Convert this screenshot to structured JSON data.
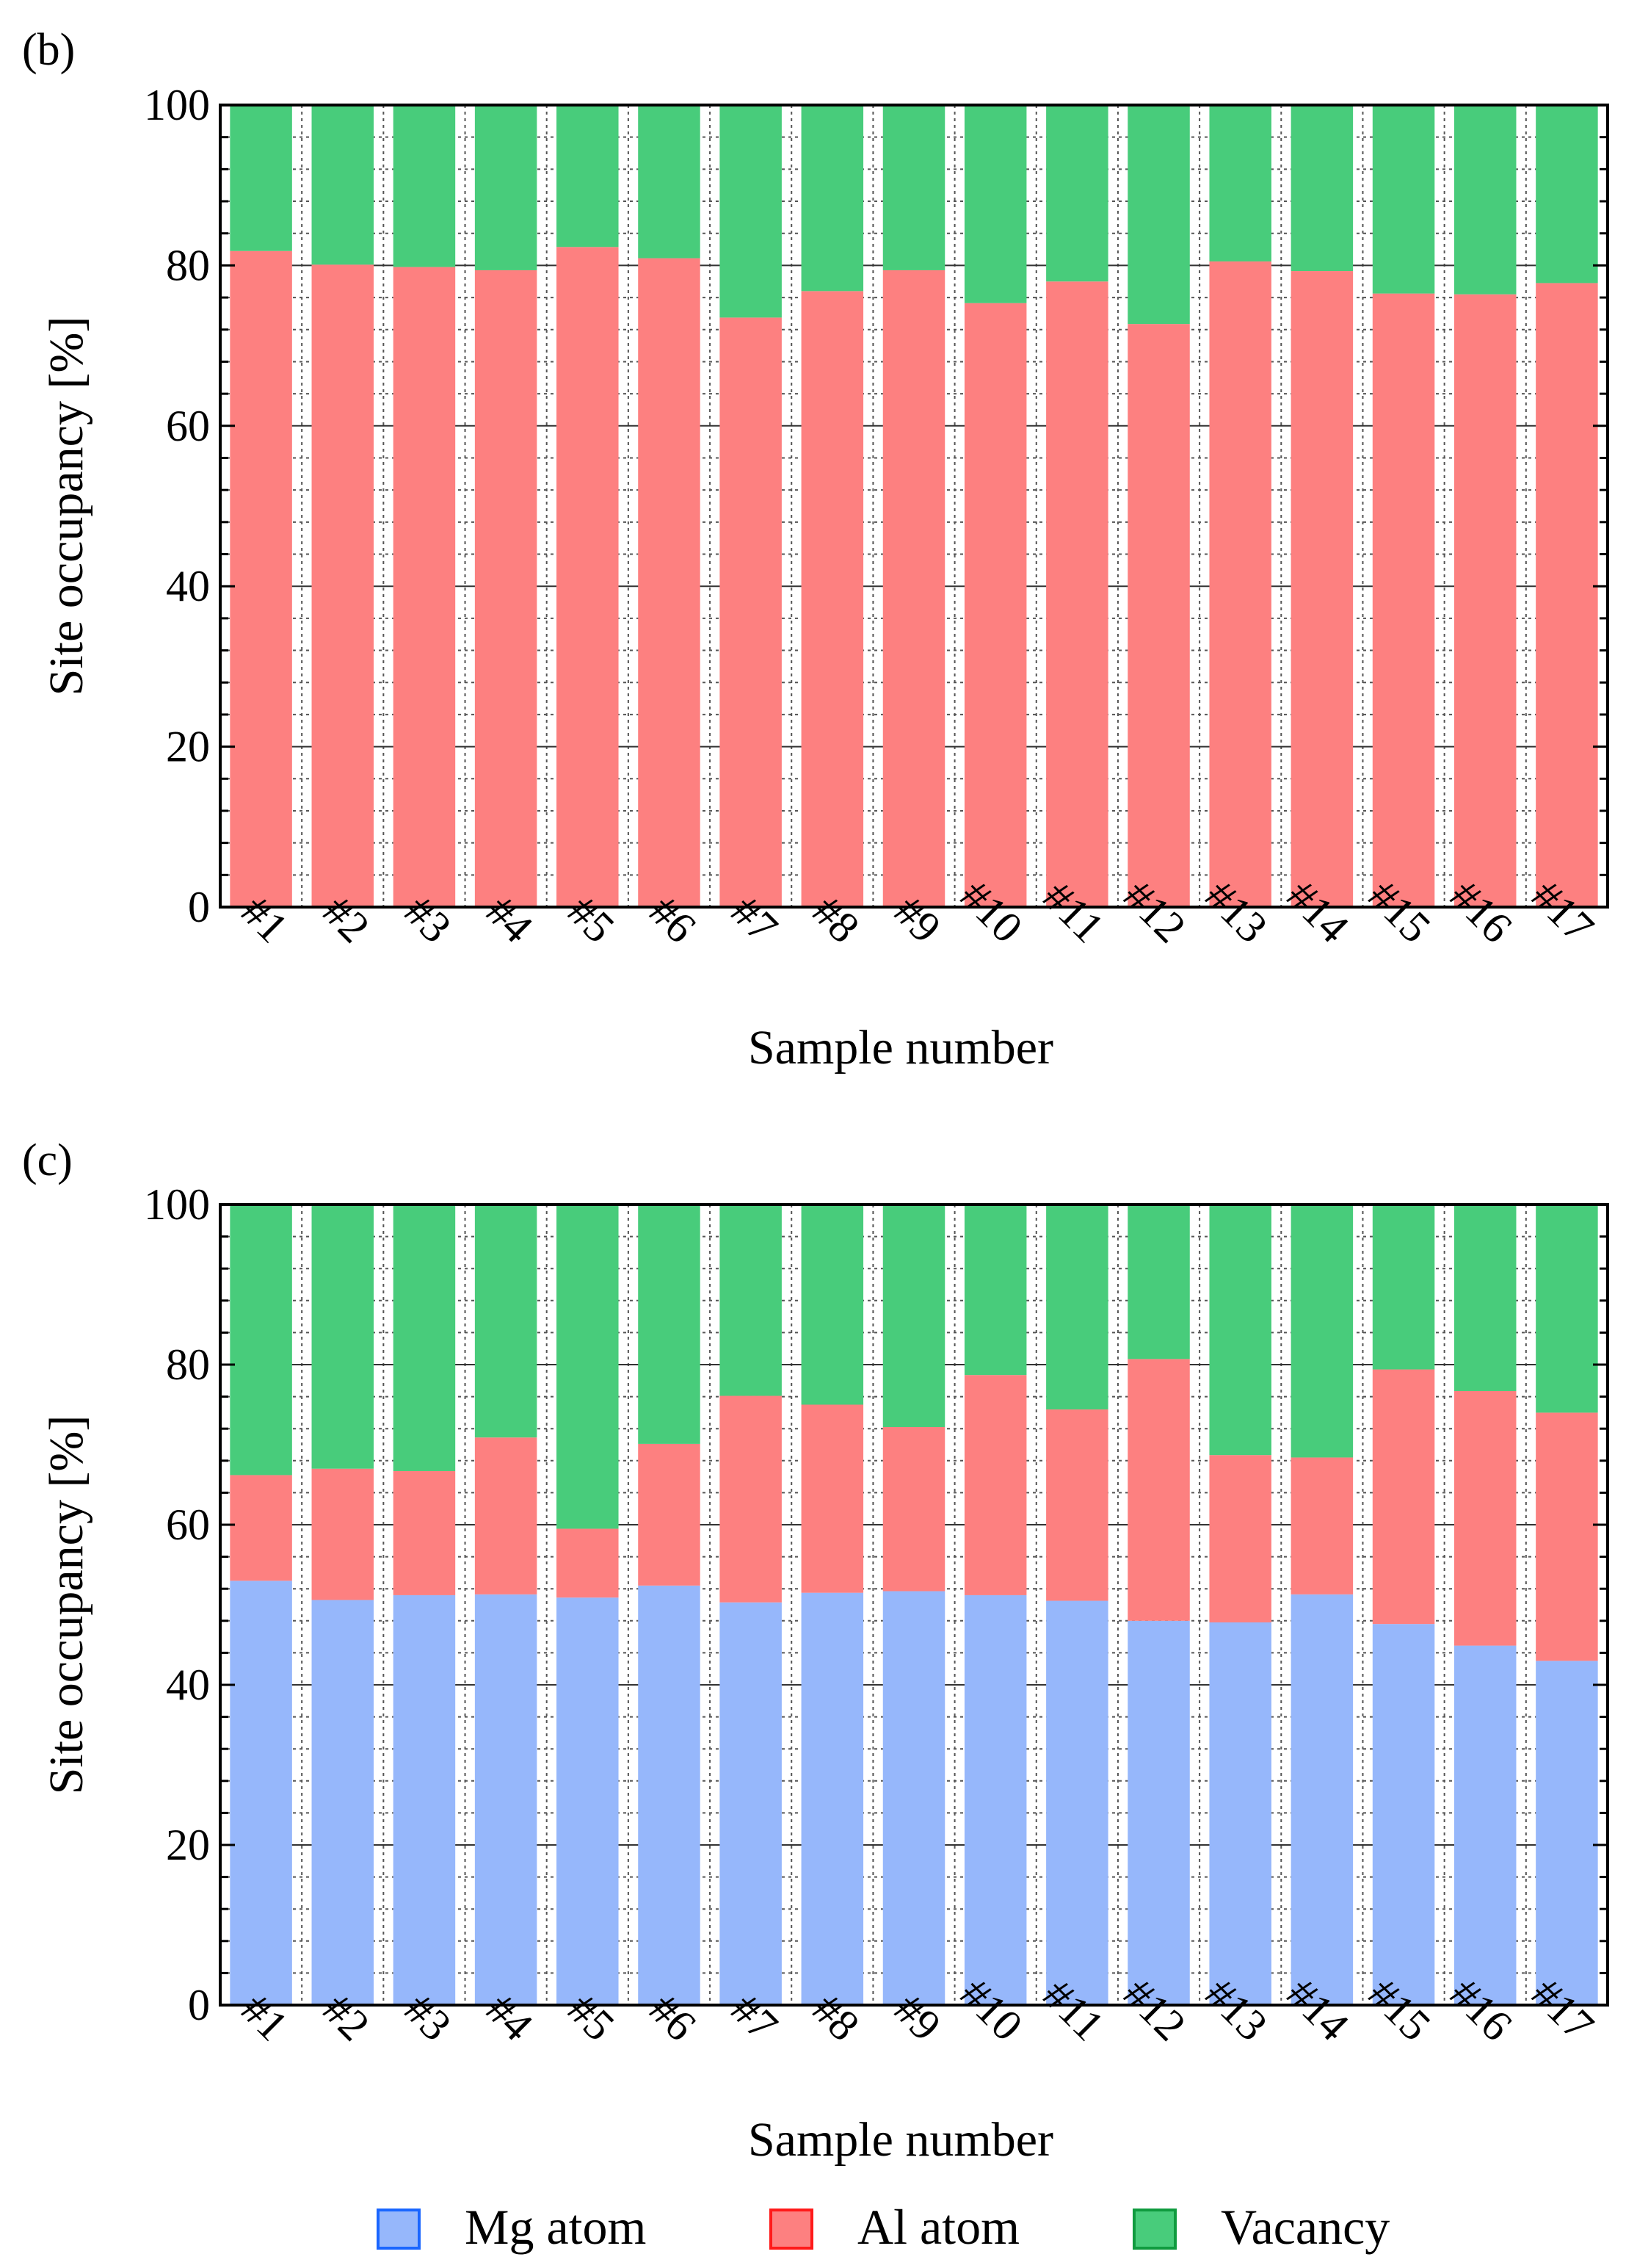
{
  "colors": {
    "mg": "#96b7fb",
    "al": "#fd8080",
    "vacancy": "#48cc7b",
    "mg_border": "#1a66ff",
    "al_border": "#ff1a1a",
    "vacancy_border": "#109b3f",
    "axis": "#000000"
  },
  "legend": {
    "items": [
      {
        "key": "mg",
        "label": "Mg atom"
      },
      {
        "key": "al",
        "label": "Al atom"
      },
      {
        "key": "vacancy",
        "label": "Vacancy"
      }
    ]
  },
  "chart_data": [
    {
      "panel_label": "(b)",
      "type": "bar",
      "stacked": true,
      "categories": [
        "#1",
        "#2",
        "#3",
        "#4",
        "#5",
        "#6",
        "#7",
        "#8",
        "#9",
        "#10",
        "#11",
        "#12",
        "#13",
        "#14",
        "#15",
        "#16",
        "#17"
      ],
      "series": [
        {
          "name": "Al atom",
          "key": "al",
          "values": [
            81.8,
            80.1,
            79.8,
            79.4,
            82.3,
            80.9,
            73.5,
            76.8,
            79.4,
            75.3,
            78.0,
            72.7,
            80.5,
            79.3,
            76.5,
            76.4,
            77.8
          ]
        },
        {
          "name": "Vacancy",
          "key": "vacancy",
          "values": [
            18.2,
            19.9,
            20.2,
            20.6,
            17.7,
            19.1,
            26.5,
            23.2,
            20.6,
            24.7,
            22.0,
            27.3,
            19.5,
            20.7,
            23.5,
            23.6,
            22.2
          ]
        }
      ],
      "title": "",
      "xlabel": "Sample number",
      "ylabel": "Site occupancy [%]",
      "ylim": [
        0,
        100
      ],
      "yticks": [
        "0",
        "20",
        "40",
        "60",
        "80",
        "100"
      ],
      "grid": true
    },
    {
      "panel_label": "(c)",
      "type": "bar",
      "stacked": true,
      "categories": [
        "#1",
        "#2",
        "#3",
        "#4",
        "#5",
        "#6",
        "#7",
        "#8",
        "#9",
        "#10",
        "#11",
        "#12",
        "#13",
        "#14",
        "#15",
        "#16",
        "#17"
      ],
      "series": [
        {
          "name": "Mg atom",
          "key": "mg",
          "values": [
            53.0,
            50.6,
            51.2,
            51.3,
            50.9,
            52.4,
            50.3,
            51.5,
            51.7,
            51.2,
            50.5,
            48.0,
            47.8,
            51.3,
            47.6,
            44.9,
            43.0
          ]
        },
        {
          "name": "Al atom",
          "key": "al",
          "values": [
            13.2,
            16.4,
            15.5,
            19.6,
            8.6,
            17.7,
            25.8,
            23.5,
            20.5,
            27.5,
            23.9,
            32.7,
            20.9,
            17.1,
            31.8,
            31.8,
            31.0
          ]
        },
        {
          "name": "Vacancy",
          "key": "vacancy",
          "values": [
            33.8,
            33.0,
            33.3,
            29.1,
            40.5,
            29.9,
            23.9,
            25.0,
            27.8,
            21.3,
            25.6,
            19.3,
            31.3,
            31.6,
            20.6,
            23.3,
            26.0
          ]
        }
      ],
      "title": "",
      "xlabel": "Sample number",
      "ylabel": "Site occupancy [%]",
      "ylim": [
        0,
        100
      ],
      "yticks": [
        "0",
        "20",
        "40",
        "60",
        "80",
        "100"
      ],
      "grid": true
    }
  ]
}
